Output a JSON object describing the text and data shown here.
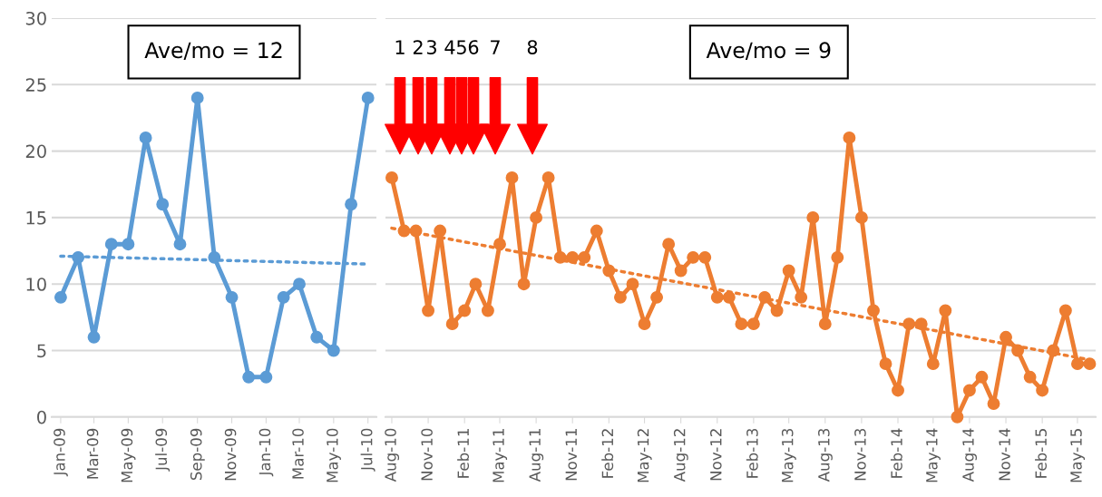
{
  "chart_data": [
    {
      "type": "line",
      "x": [
        "2009-01",
        "2009-02",
        "2009-03",
        "2009-04",
        "2009-05",
        "2009-06",
        "2009-07",
        "2009-08",
        "2009-09",
        "2009-10",
        "2009-11",
        "2009-12",
        "2010-01",
        "2010-02",
        "2010-03",
        "2010-04",
        "2010-05",
        "2010-06",
        "2010-07"
      ],
      "series": [
        {
          "color": "#5b9bd5",
          "values": [
            9,
            12,
            6,
            13,
            13,
            21,
            16,
            13,
            24,
            12,
            9,
            3,
            3,
            9,
            10,
            6,
            5,
            16,
            24
          ]
        },
        {
          "type": "line",
          "color": "#5b9bd5",
          "line_style": "dotted",
          "marker": "none",
          "x": [
            "2009-01",
            "2010-07"
          ],
          "values": [
            12.1,
            11.5
          ]
        }
      ],
      "xlim": [
        "2008-12-16",
        "2010-07-16"
      ],
      "ylim": [
        0,
        30
      ],
      "yticks": [
        0,
        5,
        10,
        15,
        20,
        25,
        30
      ],
      "xticks": [
        {
          "value": "2009-01",
          "label": "Jan-09"
        },
        {
          "value": "2009-03",
          "label": "Mar-09"
        },
        {
          "value": "2009-05",
          "label": "May-09"
        },
        {
          "value": "2009-07",
          "label": "Jul-09"
        },
        {
          "value": "2009-09",
          "label": "Sep-09"
        },
        {
          "value": "2009-11",
          "label": "Nov-09"
        },
        {
          "value": "2010-01",
          "label": "Jan-10"
        },
        {
          "value": "2010-03",
          "label": "Mar-10"
        },
        {
          "value": "2010-05",
          "label": "May-10"
        },
        {
          "value": "2010-07",
          "label": "Jul-10"
        }
      ],
      "annotations": [
        "Ave/mo = 12"
      ],
      "grid": "y",
      "marker": "circle",
      "line_style": "solid"
    },
    {
      "type": "line",
      "x": [
        "2010-08",
        "2010-09",
        "2010-10",
        "2010-11",
        "2010-12",
        "2011-01",
        "2011-02",
        "2011-03",
        "2011-04",
        "2011-05",
        "2011-06",
        "2011-07",
        "2011-08",
        "2011-09",
        "2011-10",
        "2011-11",
        "2011-12",
        "2012-01",
        "2012-02",
        "2012-03",
        "2012-04",
        "2012-05",
        "2012-06",
        "2012-07",
        "2012-08",
        "2012-09",
        "2012-10",
        "2012-11",
        "2012-12",
        "2013-01",
        "2013-02",
        "2013-03",
        "2013-04",
        "2013-05",
        "2013-06",
        "2013-07",
        "2013-08",
        "2013-09",
        "2013-10",
        "2013-11",
        "2013-12",
        "2014-01",
        "2014-02",
        "2014-03",
        "2014-04",
        "2014-05",
        "2014-06",
        "2014-07",
        "2014-08",
        "2014-09",
        "2014-10",
        "2014-11",
        "2014-12",
        "2015-01",
        "2015-02",
        "2015-03",
        "2015-04",
        "2015-05",
        "2015-06"
      ],
      "series": [
        {
          "color": "#ed7d31",
          "values": [
            18,
            14,
            14,
            8,
            14,
            7,
            8,
            10,
            8,
            13,
            18,
            10,
            15,
            18,
            12,
            12,
            12,
            14,
            11,
            9,
            10,
            7,
            9,
            13,
            11,
            12,
            12,
            9,
            9,
            7,
            7,
            9,
            8,
            11,
            9,
            15,
            7,
            12,
            21,
            15,
            8,
            4,
            2,
            7,
            7,
            4,
            8,
            0,
            2,
            3,
            1,
            6,
            5,
            3,
            2,
            5,
            8,
            4,
            4
          ]
        },
        {
          "type": "line",
          "color": "#ed7d31",
          "line_style": "dotted",
          "marker": "none",
          "x": [
            "2010-08",
            "2015-06"
          ],
          "values": [
            14.2,
            4.3
          ]
        }
      ],
      "xlim": [
        "2010-07-16",
        "2015-06-16"
      ],
      "ylim": [
        0,
        30
      ],
      "yticks": [
        0,
        5,
        10,
        15,
        20,
        25,
        30
      ],
      "xticks": [
        {
          "value": "2010-08",
          "label": "Aug-10"
        },
        {
          "value": "2010-11",
          "label": "Nov-10"
        },
        {
          "value": "2011-02",
          "label": "Feb-11"
        },
        {
          "value": "2011-05",
          "label": "May-11"
        },
        {
          "value": "2011-08",
          "label": "Aug-11"
        },
        {
          "value": "2011-11",
          "label": "Nov-11"
        },
        {
          "value": "2012-02",
          "label": "Feb-12"
        },
        {
          "value": "2012-05",
          "label": "May-12"
        },
        {
          "value": "2012-08",
          "label": "Aug-12"
        },
        {
          "value": "2012-11",
          "label": "Nov-12"
        },
        {
          "value": "2013-02",
          "label": "Feb-13"
        },
        {
          "value": "2013-05",
          "label": "May-13"
        },
        {
          "value": "2013-08",
          "label": "Aug-13"
        },
        {
          "value": "2013-11",
          "label": "Nov-13"
        },
        {
          "value": "2014-02",
          "label": "Feb-14"
        },
        {
          "value": "2014-05",
          "label": "May-14"
        },
        {
          "value": "2014-08",
          "label": "Aug-14"
        },
        {
          "value": "2014-11",
          "label": "Nov-14"
        },
        {
          "value": "2015-02",
          "label": "Feb-15"
        },
        {
          "value": "2015-05",
          "label": "May-15"
        }
      ],
      "annotations": [
        "Ave/mo = 9",
        "1",
        "2",
        "3",
        "4",
        "5",
        "6",
        "7",
        "8"
      ],
      "grid": "y",
      "marker": "circle",
      "line_style": "solid",
      "tick_labels": "x"
    }
  ]
}
